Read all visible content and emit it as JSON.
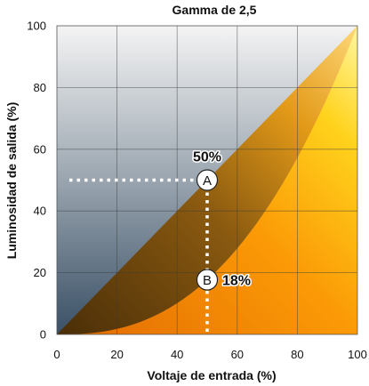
{
  "chart_data": {
    "type": "line",
    "title": "Gamma de 2,5",
    "xlabel": "Voltaje de entrada (%)",
    "ylabel": "Luminosidad de salida (%)",
    "xlim": [
      0,
      100
    ],
    "ylim": [
      0,
      100
    ],
    "x_ticks": [
      0,
      20,
      40,
      60,
      80,
      100
    ],
    "y_ticks": [
      0,
      20,
      40,
      60,
      80,
      100
    ],
    "grid": true,
    "gamma": 2.5,
    "series": [
      {
        "x": [
          0,
          100
        ],
        "y": [
          0,
          100
        ]
      },
      {
        "x": [
          0,
          10,
          20,
          30,
          40,
          50,
          60,
          70,
          80,
          90,
          100
        ],
        "y": [
          0,
          0.3,
          1.8,
          4.9,
          10.1,
          17.7,
          27.9,
          41.0,
          57.2,
          76.8,
          100
        ]
      }
    ],
    "annotations": [
      {
        "marker": "A",
        "label": "50%",
        "x": 50,
        "y": 50
      },
      {
        "marker": "B",
        "label": "18%",
        "x": 50,
        "y": 17.7
      }
    ],
    "colors": {
      "background_top": "#f4f4f4",
      "background_bottom": "#3a5066",
      "linear_band_dark": "#8a4e06",
      "linear_band_bright": "#fbb22a",
      "gamma_fill_dark": "#f07a04",
      "gamma_fill_bright": "#fff46a",
      "guide": "#ffffff"
    }
  }
}
